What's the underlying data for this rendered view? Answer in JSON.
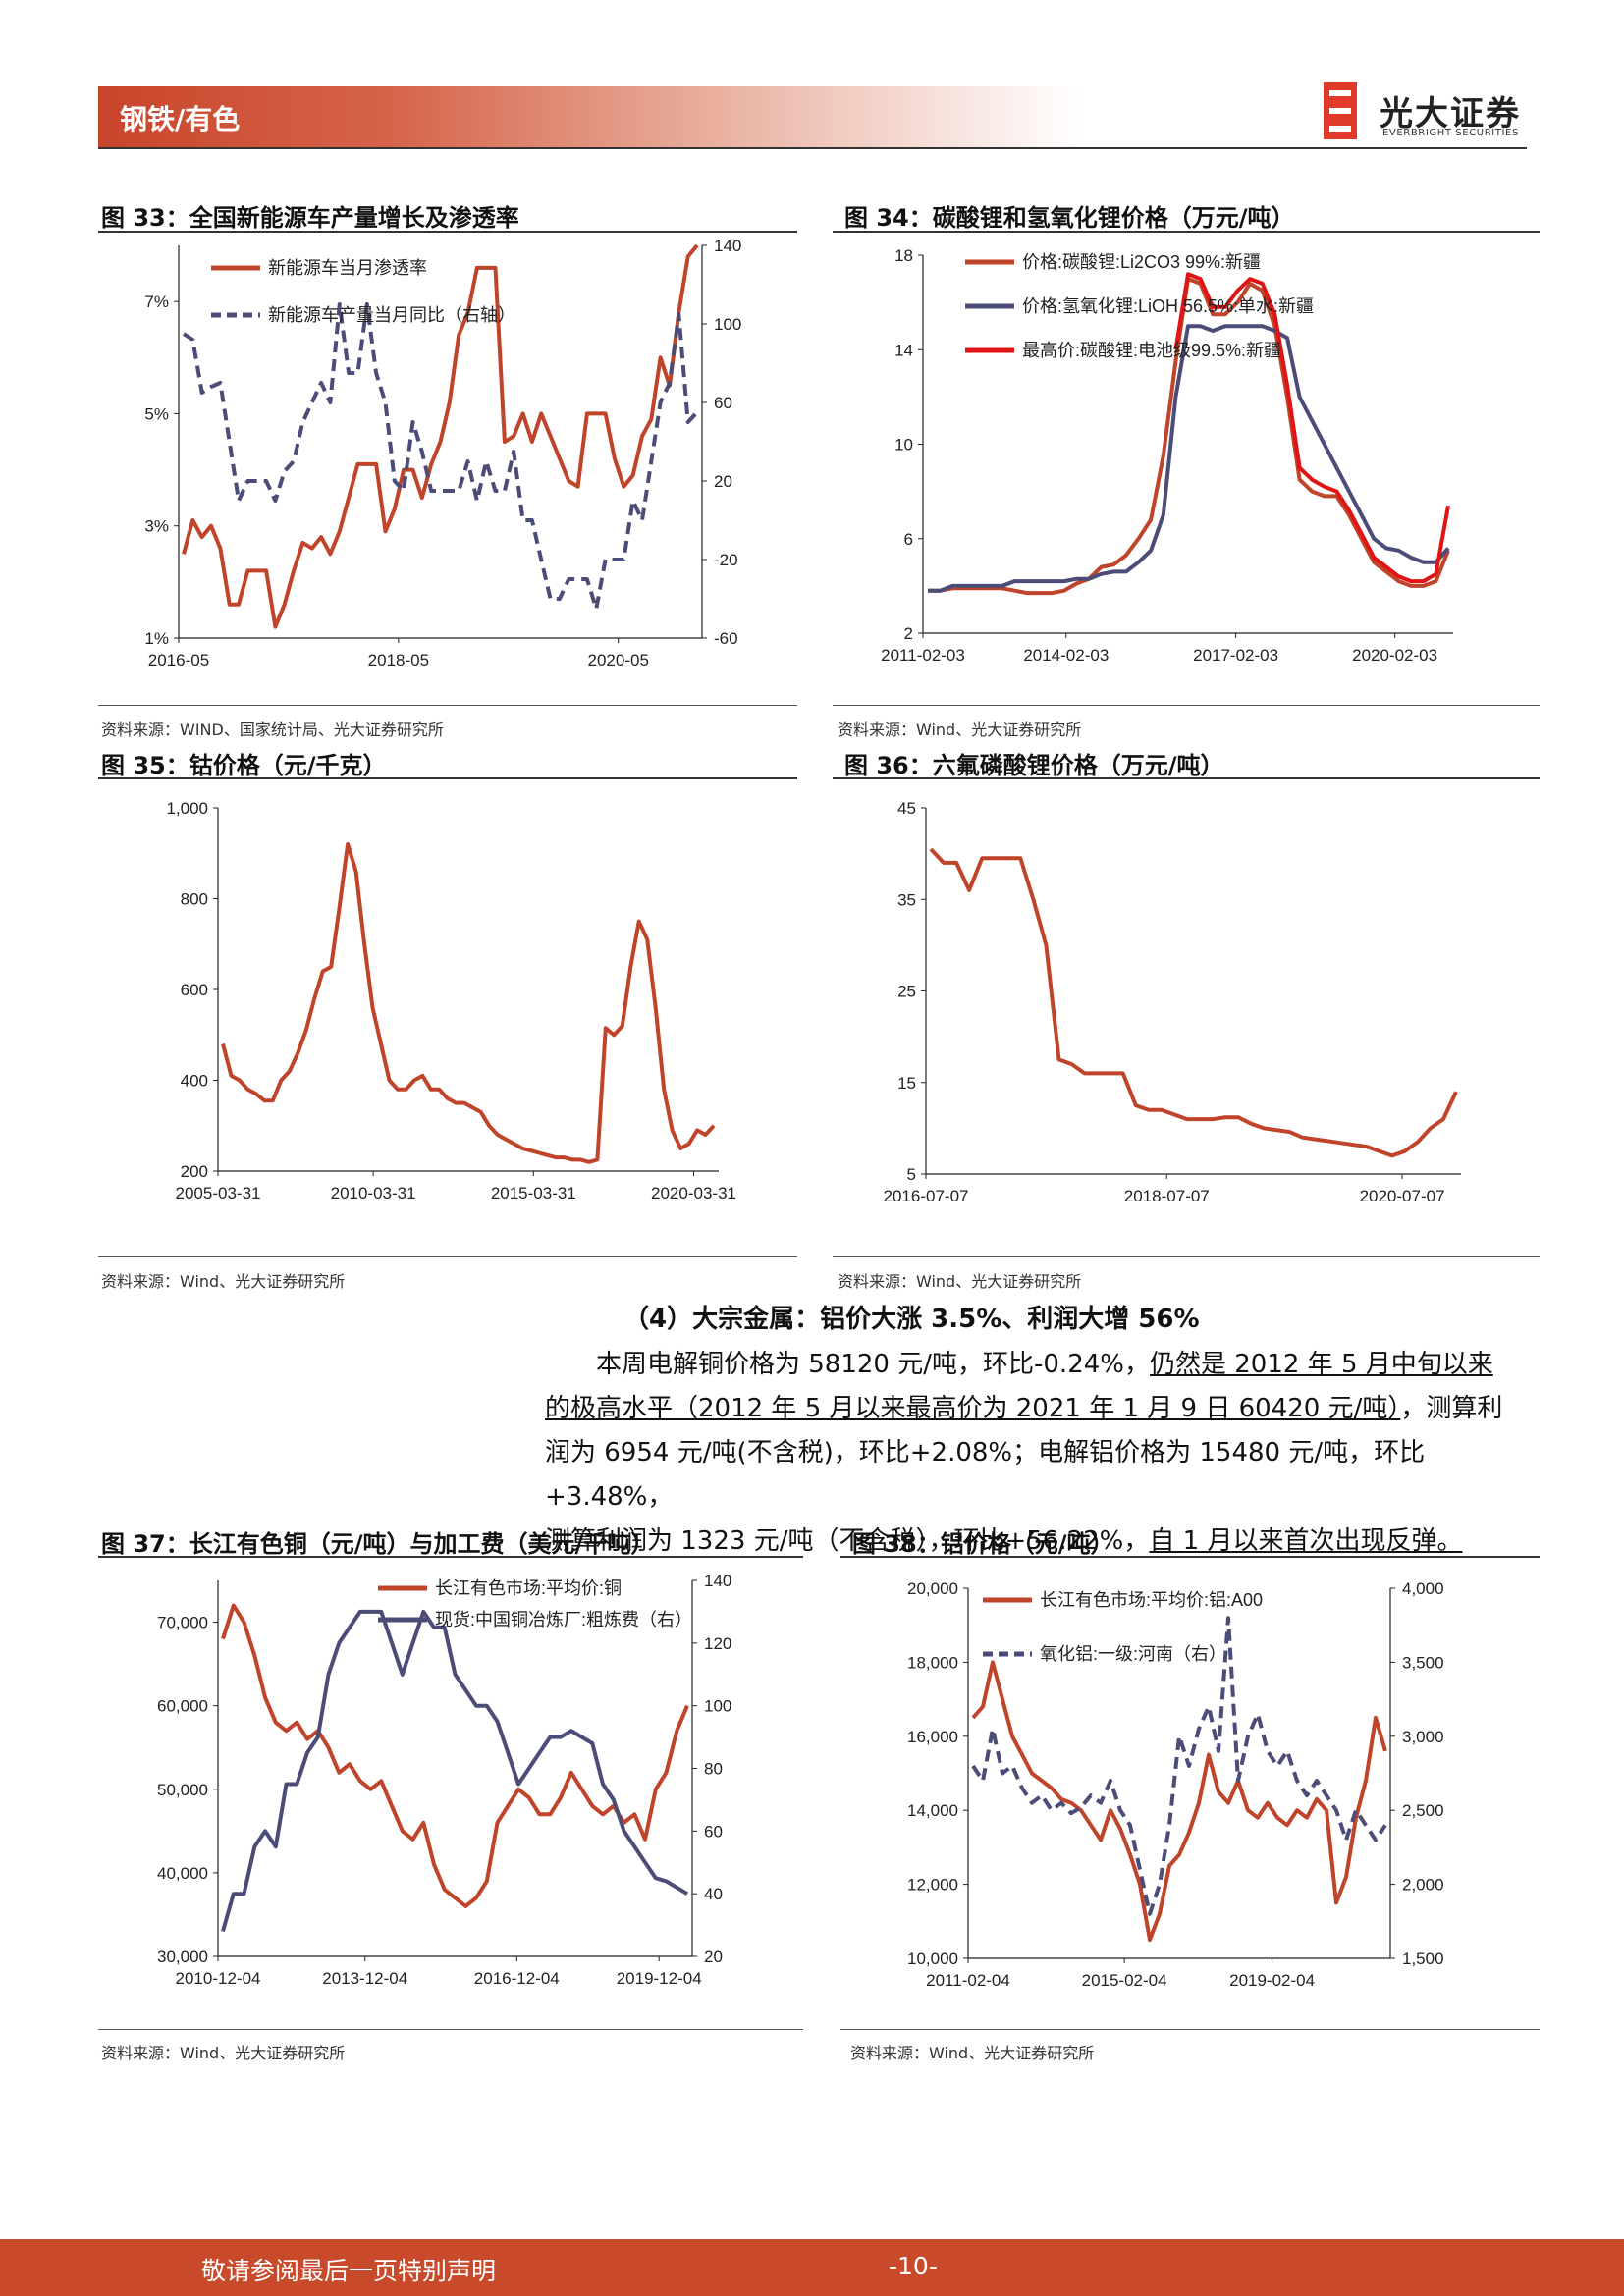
{
  "header": {
    "section": "钢铁/有色",
    "logo_cn": "光大证券",
    "logo_en": "EVERBRIGHT SECURITIES"
  },
  "colors": {
    "accent": "#c8452a",
    "red": "#c0442a",
    "navy": "#4b4d78",
    "bright_red": "#e01414"
  },
  "figures": {
    "fig33": {
      "title": "图 33：全国新能源车产量增长及渗透率",
      "source": "资料来源：WIND、国家统计局、光大证券研究所"
    },
    "fig34": {
      "title": "图 34：碳酸锂和氢氧化锂价格（万元/吨）",
      "source": "资料来源：Wind、光大证券研究所"
    },
    "fig35": {
      "title": "图 35：钴价格（元/千克）",
      "source": "资料来源：Wind、光大证券研究所"
    },
    "fig36": {
      "title": "图 36：六氟磷酸锂价格（万元/吨）",
      "source": "资料来源：Wind、光大证券研究所"
    },
    "fig37": {
      "title": "图 37：长江有色铜（元/吨）与加工费（美元/千吨）",
      "source": "资料来源：Wind、光大证券研究所"
    },
    "fig38": {
      "title": "图 38：铝价格（元/吨）",
      "source": "资料来源：Wind、光大证券研究所"
    }
  },
  "section": {
    "heading": "（4）大宗金属：铝价大涨 3.5%、利润大增 56%",
    "p1": "本周电解铜价格为 58120 元/吨，环比-0.24%，",
    "p1_u": "仍然是 2012 年 5 月中旬以来",
    "p2_u": "的极高水平（2012 年 5 月以来最高价为 2021 年 1 月 9 日 60420 元/吨）",
    "p2": "，测算利",
    "p3": "润为 6954 元/吨(不含税)，环比+2.08%；电解铝价格为 15480 元/吨，环比+3.48%，",
    "p4": "测算利润为 1323 元/吨（不含税），环比+56.22%，",
    "p4_u": "自 1 月以来首次出现反弹。"
  },
  "footer": {
    "disclaimer": "敬请参阅最后一页特别声明",
    "page": "-10-"
  },
  "chart_data": [
    {
      "id": "fig33",
      "type": "line",
      "x_ticks": [
        "2016-05",
        "2018-05",
        "2020-05"
      ],
      "left_axis": {
        "ticks": [
          "1%",
          "3%",
          "5%",
          "7%"
        ],
        "ylim": [
          1,
          8
        ]
      },
      "right_axis": {
        "ticks": [
          "-60",
          "-20",
          "20",
          "60",
          "100",
          "140"
        ],
        "ylim": [
          -60,
          140
        ]
      },
      "series": [
        {
          "name": "新能源车当月渗透率",
          "axis": "left",
          "color": "#c0442a",
          "values": [
            2.5,
            3.1,
            2.8,
            3.0,
            2.6,
            1.6,
            1.6,
            2.2,
            2.2,
            2.2,
            1.2,
            1.6,
            2.2,
            2.7,
            2.6,
            2.8,
            2.5,
            2.9,
            3.5,
            4.1,
            4.1,
            4.1,
            2.9,
            3.3,
            4.0,
            4.0,
            3.5,
            4.1,
            4.5,
            5.2,
            6.4,
            6.8,
            7.6,
            7.6,
            7.6,
            4.5,
            4.6,
            5.0,
            4.5,
            5.0,
            4.6,
            4.2,
            3.8,
            3.7,
            5.0,
            5.0,
            5.0,
            4.2,
            3.7,
            3.9,
            4.6,
            4.9,
            6.0,
            5.5,
            6.8,
            7.8,
            8.0
          ]
        },
        {
          "name": "新能源车产量当月同比（右轴）",
          "axis": "right",
          "color": "#4b4d78",
          "values": [
            95,
            92,
            65,
            68,
            70,
            40,
            10,
            20,
            20,
            20,
            10,
            25,
            30,
            50,
            60,
            70,
            60,
            110,
            75,
            75,
            110,
            75,
            60,
            20,
            15,
            50,
            35,
            15,
            15,
            15,
            15,
            30,
            10,
            30,
            15,
            15,
            35,
            0,
            0,
            -20,
            -40,
            -40,
            -30,
            -30,
            -30,
            -45,
            -20,
            -20,
            -20,
            10,
            0,
            30,
            60,
            70,
            105,
            50,
            55
          ]
        }
      ]
    },
    {
      "id": "fig34",
      "type": "line",
      "x_ticks": [
        "2011-02-03",
        "2014-02-03",
        "2017-02-03",
        "2020-02-03"
      ],
      "y_ticks": [
        "2",
        "6",
        "10",
        "14",
        "18"
      ],
      "ylim": [
        2,
        18
      ],
      "series": [
        {
          "name": "价格:碳酸锂:Li2CO3 99%:新疆",
          "color": "#c0442a",
          "values": [
            3.8,
            3.8,
            3.9,
            3.9,
            3.9,
            3.9,
            3.9,
            3.8,
            3.7,
            3.7,
            3.7,
            3.8,
            4.1,
            4.3,
            4.8,
            4.9,
            5.3,
            6.0,
            6.8,
            9.5,
            13.5,
            17.0,
            16.8,
            15.5,
            15.5,
            16.0,
            16.8,
            16.5,
            15.0,
            12.0,
            8.5,
            8.0,
            7.8,
            7.8,
            7.0,
            6.0,
            5.0,
            4.6,
            4.2,
            4.0,
            4.0,
            4.2,
            5.5
          ]
        },
        {
          "name": "价格:氢氧化锂:LiOH 56.5%:单水:新疆",
          "color": "#4b4d78",
          "values": [
            3.8,
            3.8,
            4.0,
            4.0,
            4.0,
            4.0,
            4.0,
            4.2,
            4.2,
            4.2,
            4.2,
            4.2,
            4.3,
            4.3,
            4.5,
            4.6,
            4.6,
            5.0,
            5.5,
            7.0,
            12.0,
            15.0,
            15.0,
            14.8,
            15.0,
            15.0,
            15.0,
            15.0,
            14.8,
            14.5,
            12.0,
            11.0,
            10.0,
            9.0,
            8.0,
            7.0,
            6.0,
            5.6,
            5.5,
            5.2,
            5.0,
            5.0,
            5.6
          ]
        },
        {
          "name": "最高价:碳酸锂:电池级99.5%:新疆",
          "color": "#e01414",
          "values": [
            null,
            null,
            null,
            null,
            null,
            null,
            null,
            null,
            null,
            null,
            null,
            null,
            null,
            null,
            null,
            null,
            null,
            null,
            null,
            null,
            14.0,
            17.2,
            17.0,
            15.8,
            15.8,
            16.5,
            17.0,
            16.8,
            15.5,
            12.5,
            9.0,
            8.5,
            8.2,
            8.0,
            7.2,
            6.2,
            5.2,
            4.8,
            4.4,
            4.2,
            4.2,
            4.5,
            7.4
          ]
        }
      ]
    },
    {
      "id": "fig35",
      "type": "line",
      "x_ticks": [
        "2005-03-31",
        "2010-03-31",
        "2015-03-31",
        "2020-03-31"
      ],
      "y_ticks": [
        "200",
        "400",
        "600",
        "800",
        "1,000"
      ],
      "ylim": [
        200,
        1000
      ],
      "series": [
        {
          "name": "钴价格",
          "color": "#c0442a",
          "values": [
            480,
            410,
            400,
            380,
            370,
            355,
            355,
            400,
            420,
            460,
            510,
            580,
            640,
            650,
            780,
            920,
            860,
            700,
            560,
            480,
            400,
            380,
            380,
            400,
            410,
            380,
            380,
            360,
            350,
            350,
            340,
            330,
            300,
            280,
            270,
            260,
            250,
            245,
            240,
            235,
            230,
            230,
            225,
            225,
            220,
            225,
            515,
            500,
            520,
            650,
            750,
            710,
            560,
            380,
            290,
            250,
            260,
            290,
            280,
            300
          ]
        }
      ]
    },
    {
      "id": "fig36",
      "type": "line",
      "x_ticks": [
        "2016-07-07",
        "2018-07-07",
        "2020-07-07"
      ],
      "y_ticks": [
        "5",
        "15",
        "25",
        "35",
        "45"
      ],
      "ylim": [
        5,
        45
      ],
      "series": [
        {
          "name": "六氟磷酸锂价格",
          "color": "#c0442a",
          "values": [
            40.5,
            39.0,
            39.0,
            36.0,
            39.5,
            39.5,
            39.5,
            39.5,
            35.0,
            30.0,
            17.5,
            17.0,
            16.0,
            16.0,
            16.0,
            16.0,
            12.5,
            12.0,
            12.0,
            11.5,
            11.0,
            11.0,
            11.0,
            11.2,
            11.2,
            10.5,
            10.0,
            9.8,
            9.6,
            9.0,
            8.8,
            8.6,
            8.4,
            8.2,
            8.0,
            7.5,
            7.0,
            7.5,
            8.5,
            10.0,
            11.0,
            14.0
          ]
        }
      ]
    },
    {
      "id": "fig37",
      "type": "line",
      "x_ticks": [
        "2010-12-04",
        "2013-12-04",
        "2016-12-04",
        "2019-12-04"
      ],
      "left_axis": {
        "ticks": [
          "30,000",
          "40,000",
          "50,000",
          "60,000",
          "70,000"
        ],
        "ylim": [
          30000,
          75000
        ]
      },
      "right_axis": {
        "ticks": [
          "20",
          "40",
          "60",
          "80",
          "100",
          "120",
          "140"
        ],
        "ylim": [
          20,
          140
        ]
      },
      "series": [
        {
          "name": "长江有色市场:平均价:铜",
          "axis": "left",
          "color": "#c0442a",
          "values": [
            68000,
            72000,
            70000,
            66000,
            61000,
            58000,
            57000,
            58000,
            56000,
            57000,
            55000,
            52000,
            53000,
            51000,
            50000,
            51000,
            48000,
            45000,
            44000,
            46000,
            41000,
            38000,
            37000,
            36000,
            37000,
            39000,
            46000,
            48000,
            50000,
            49000,
            47000,
            47000,
            49000,
            52000,
            50000,
            48000,
            47000,
            48000,
            46000,
            47000,
            44000,
            50000,
            52000,
            57000,
            60000
          ]
        },
        {
          "name": "现货:中国铜冶炼厂:粗炼费（右）",
          "axis": "right",
          "color": "#4b4d78",
          "values": [
            28,
            40,
            40,
            55,
            60,
            55,
            75,
            75,
            85,
            90,
            110,
            120,
            125,
            130,
            130,
            130,
            120,
            110,
            120,
            130,
            125,
            125,
            110,
            105,
            100,
            100,
            95,
            85,
            75,
            80,
            85,
            90,
            90,
            92,
            90,
            88,
            75,
            70,
            60,
            55,
            50,
            45,
            44,
            42,
            40
          ]
        }
      ]
    },
    {
      "id": "fig38",
      "type": "line",
      "x_ticks": [
        "2011-02-04",
        "2015-02-04",
        "2019-02-04"
      ],
      "left_axis": {
        "ticks": [
          "10,000",
          "12,000",
          "14,000",
          "16,000",
          "18,000",
          "20,000"
        ],
        "ylim": [
          10000,
          20000
        ]
      },
      "right_axis": {
        "ticks": [
          "1,500",
          "2,000",
          "2,500",
          "3,000",
          "3,500",
          "4,000"
        ],
        "ylim": [
          1500,
          4000
        ]
      },
      "series": [
        {
          "name": "长江有色市场:平均价:铝:A00",
          "axis": "left",
          "color": "#c0442a",
          "values": [
            16500,
            16800,
            18000,
            17000,
            16000,
            15500,
            15000,
            14800,
            14600,
            14300,
            14200,
            14000,
            13600,
            13200,
            14000,
            13500,
            12800,
            12000,
            10500,
            11200,
            12500,
            12800,
            13400,
            14200,
            15500,
            14500,
            14200,
            14800,
            14000,
            13800,
            14200,
            13800,
            13600,
            14000,
            13800,
            14300,
            14000,
            11500,
            12200,
            13800,
            14800,
            16500,
            15600
          ]
        },
        {
          "name": "氧化铝:一级:河南（右）",
          "axis": "right",
          "color": "#4b4d78",
          "values": [
            2800,
            2700,
            3050,
            2750,
            2800,
            2650,
            2550,
            2600,
            2500,
            2550,
            2480,
            2520,
            2600,
            2550,
            2700,
            2500,
            2400,
            2100,
            1800,
            2000,
            2400,
            3000,
            2800,
            3050,
            3200,
            2900,
            3800,
            2700,
            3000,
            3150,
            2900,
            2800,
            2900,
            2700,
            2600,
            2700,
            2600,
            2500,
            2300,
            2500,
            2400,
            2300,
            2400
          ]
        }
      ]
    }
  ]
}
